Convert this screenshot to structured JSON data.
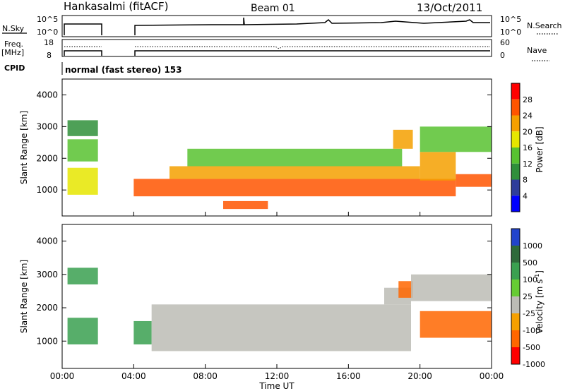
{
  "header": {
    "station": "Hankasalmi (fitACF)",
    "beam": "Beam 01",
    "date": "13/Oct/2011"
  },
  "status_panels": {
    "nsky_label": "N.Sky",
    "nsky_ticks": [
      "10^5",
      "10^0"
    ],
    "nsearch_label": "N.Search",
    "nsearch_ticks": [
      "10^5",
      "10^0"
    ],
    "freq_label": "Freq.",
    "freq_unit": "[MHz]",
    "freq_ticks": [
      "18",
      "8"
    ],
    "nave_label": "Nave",
    "nave_ticks": [
      "60",
      "0"
    ],
    "cpid_label": "CPID",
    "cpid_text": "normal (fast stereo) 153"
  },
  "chart_data": [
    {
      "type": "heatmap",
      "name": "power",
      "ylabel": "Slant Range [km]",
      "yticks": [
        "4000",
        "3000",
        "2000",
        "1000"
      ],
      "ylim": [
        180,
        4500
      ],
      "colorbar_label": "Power [dB]",
      "colorbar_ticks": [
        "28",
        "24",
        "20",
        "16",
        "12",
        "8",
        "4"
      ],
      "colors": [
        "#0000ff",
        "#2e3d9a",
        "#2f8f3a",
        "#58c230",
        "#e6e600",
        "#f5a000",
        "#ff5500",
        "#ff0000"
      ],
      "bands": [
        {
          "x": [
            0.3,
            2.0
          ],
          "y": [
            850,
            1700
          ],
          "v": 16
        },
        {
          "x": [
            0.3,
            2.0
          ],
          "y": [
            1900,
            2600
          ],
          "v": 12
        },
        {
          "x": [
            0.3,
            2.0
          ],
          "y": [
            2700,
            3200
          ],
          "v": 8
        },
        {
          "x": [
            4.0,
            22.0
          ],
          "y": [
            800,
            1350
          ],
          "v": 26
        },
        {
          "x": [
            6.0,
            20.0
          ],
          "y": [
            1350,
            1750
          ],
          "v": 20
        },
        {
          "x": [
            7.0,
            19.0
          ],
          "y": [
            1750,
            2300
          ],
          "v": 12
        },
        {
          "x": [
            9.0,
            11.5
          ],
          "y": [
            400,
            650
          ],
          "v": 24
        },
        {
          "x": [
            18.5,
            19.6
          ],
          "y": [
            2300,
            2900
          ],
          "v": 20
        },
        {
          "x": [
            20.0,
            22.0
          ],
          "y": [
            1300,
            2200
          ],
          "v": 22
        },
        {
          "x": [
            20.0,
            24.0
          ],
          "y": [
            2200,
            3000
          ],
          "v": 12
        },
        {
          "x": [
            22.0,
            24.0
          ],
          "y": [
            1100,
            1500
          ],
          "v": 24
        }
      ]
    },
    {
      "type": "heatmap",
      "name": "velocity",
      "xlabel": "Time UT",
      "xticks": [
        "00:00",
        "04:00",
        "08:00",
        "12:00",
        "16:00",
        "20:00",
        "00:00"
      ],
      "xlim": [
        0,
        24
      ],
      "ylabel": "Slant Range [km]",
      "yticks": [
        "4000",
        "3000",
        "2000",
        "1000"
      ],
      "ylim": [
        180,
        4500
      ],
      "colorbar_label": "Velocity [m s^-1]",
      "colorbar_ticks": [
        "1000",
        "500",
        "100",
        "25",
        "-25",
        "-100",
        "-500",
        "-1000"
      ],
      "colors": [
        "#2244cc",
        "#2e6a3a",
        "#3aa050",
        "#66cc33",
        "#bcbcb5",
        "#f5a000",
        "#ff6600",
        "#ff0000"
      ],
      "bands": [
        {
          "x": [
            0.3,
            2.0
          ],
          "y": [
            900,
            1700
          ],
          "v": 150
        },
        {
          "x": [
            0.3,
            2.0
          ],
          "y": [
            2700,
            3200
          ],
          "v": 300
        },
        {
          "x": [
            4.0,
            5.0
          ],
          "y": [
            900,
            1600
          ],
          "v": 150
        },
        {
          "x": [
            5.0,
            19.5
          ],
          "y": [
            700,
            2100
          ],
          "v": 0
        },
        {
          "x": [
            18.0,
            19.5
          ],
          "y": [
            2100,
            2600
          ],
          "v": 0
        },
        {
          "x": [
            18.8,
            19.6
          ],
          "y": [
            2300,
            2800
          ],
          "v": -300
        },
        {
          "x": [
            20.0,
            24.0
          ],
          "y": [
            1100,
            1900
          ],
          "v": -400
        },
        {
          "x": [
            19.5,
            24.0
          ],
          "y": [
            2200,
            3000
          ],
          "v": 0
        }
      ]
    }
  ]
}
